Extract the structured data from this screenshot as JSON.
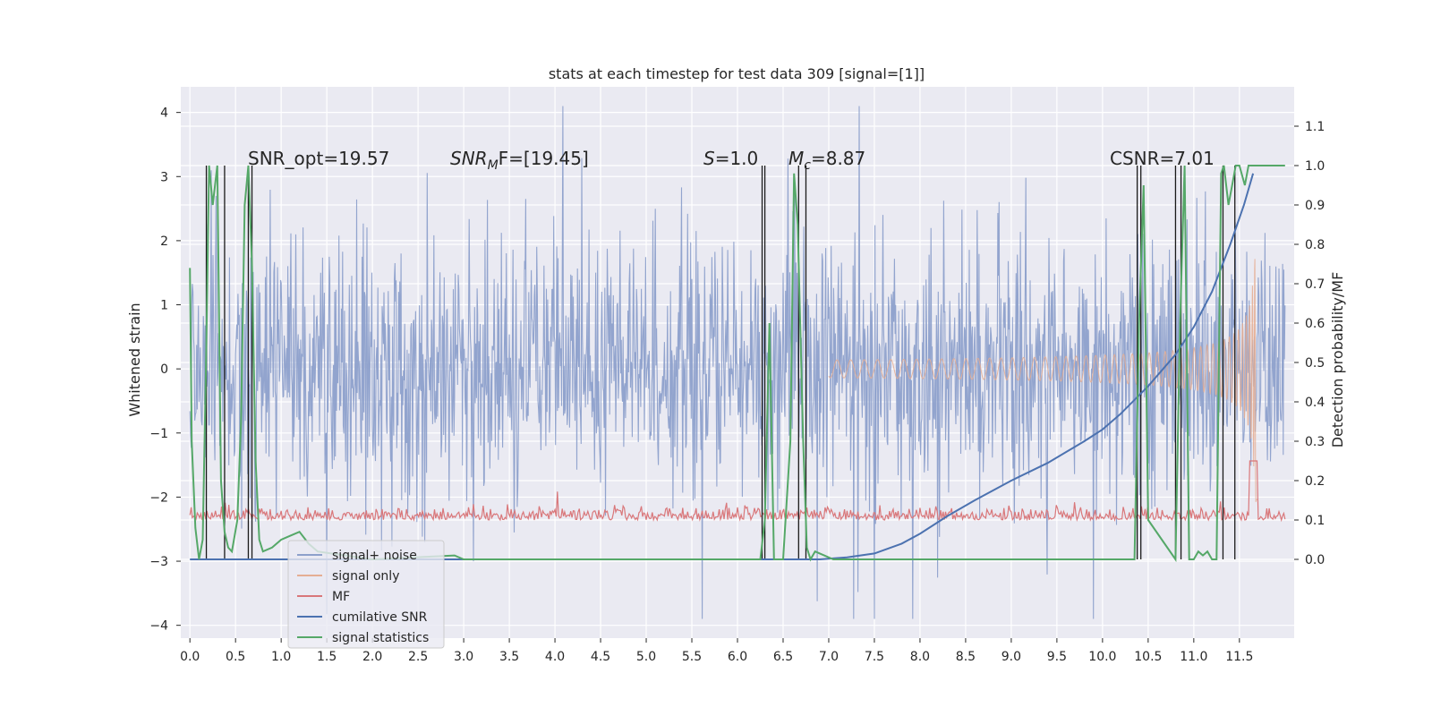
{
  "chart_data": {
    "type": "line",
    "title": "stats at each timestep for test data 309 [signal=[1]]",
    "xlabel": "",
    "ylabel": "Whitened strain",
    "ylabel_right": "Detection probability/MF",
    "xlim": [
      -0.1,
      12.1
    ],
    "ylim": [
      -4.2,
      4.4
    ],
    "ylim_right": [
      -0.2,
      1.2
    ],
    "x_ticks": [
      "0.0",
      "0.5",
      "1.0",
      "1.5",
      "2.0",
      "2.5",
      "3.0",
      "3.5",
      "4.0",
      "4.5",
      "5.0",
      "5.5",
      "6.0",
      "6.5",
      "7.0",
      "7.5",
      "8.0",
      "8.5",
      "9.0",
      "9.5",
      "10.0",
      "10.5",
      "11.0",
      "11.5"
    ],
    "y_ticks": [
      "4",
      "3",
      "2",
      "1",
      "0",
      "−1",
      "−2",
      "−3",
      "−4"
    ],
    "y_ticks_right": [
      "1.1",
      "1.0",
      "0.9",
      "0.8",
      "0.7",
      "0.6",
      "0.5",
      "0.4",
      "0.3",
      "0.2",
      "0.1",
      "0.0"
    ],
    "grid": true,
    "legend_position": "lower-left",
    "annotations": {
      "snr_opt": "SNR_opt=19.57",
      "snr_mf_symbol": "SNR",
      "snr_mf_sub": "M",
      "snr_mf_rest": "F=[19.45]",
      "s_symbol": "S",
      "s_rest": "=1.0",
      "mc_symbol": "M",
      "mc_sub": "c",
      "mc_rest": "=8.87",
      "csnr": "CSNR=7.01"
    },
    "series": [
      {
        "name": "signal+ noise",
        "color": "#8da0cb",
        "envelope": "noise band approximately ±1.7, peaks up to about ±3.8, x from 0.0 to 12.0"
      },
      {
        "name": "signal only",
        "color": "#e5ae93",
        "envelope": "chirp amplitude grows from about ±0.05 at x=7 to about ±2.0 at x=11.65, ends at x=11.7"
      },
      {
        "name": "MF",
        "color": "#d9777a",
        "values_note": "small noise around 0.1 on the right axis"
      },
      {
        "name": "cumilative SNR",
        "color": "#4c72b0",
        "x": [
          6.9,
          7.2,
          7.5,
          7.8,
          8.0,
          8.3,
          8.6,
          9.0,
          9.4,
          9.8,
          10.0,
          10.2,
          10.5,
          10.8,
          11.0,
          11.2,
          11.4,
          11.55,
          11.65
        ],
        "y_right": [
          0.0,
          0.005,
          0.015,
          0.04,
          0.065,
          0.11,
          0.15,
          0.2,
          0.245,
          0.3,
          0.33,
          0.37,
          0.44,
          0.52,
          0.59,
          0.68,
          0.8,
          0.9,
          0.98
        ]
      },
      {
        "name": "signal statistics",
        "color": "#55a868",
        "x": [
          0.0,
          0.02,
          0.06,
          0.1,
          0.14,
          0.18,
          0.21,
          0.25,
          0.3,
          0.34,
          0.38,
          0.42,
          0.46,
          0.52,
          0.56,
          0.6,
          0.64,
          0.68,
          0.72,
          0.76,
          0.8,
          0.9,
          1.0,
          1.1,
          1.2,
          1.3,
          1.4,
          2.0,
          2.9,
          3.0,
          4.0,
          5.0,
          6.0,
          6.25,
          6.3,
          6.35,
          6.4,
          6.5,
          6.58,
          6.62,
          6.66,
          6.72,
          6.76,
          6.8,
          6.85,
          6.95,
          7.05,
          7.2,
          8.0,
          9.0,
          10.0,
          10.35,
          10.4,
          10.45,
          10.5,
          10.8,
          10.85,
          10.9,
          10.95,
          11.0,
          11.05,
          11.1,
          11.15,
          11.2,
          11.25,
          11.3,
          11.33,
          11.38,
          11.42,
          11.46,
          11.5,
          11.56,
          11.6,
          11.65,
          11.75,
          11.85,
          12.0
        ],
        "y_right": [
          0.74,
          0.3,
          0.08,
          0.0,
          0.05,
          0.55,
          1.0,
          0.9,
          1.0,
          0.2,
          0.07,
          0.03,
          0.02,
          0.1,
          0.35,
          0.9,
          1.0,
          0.75,
          0.25,
          0.05,
          0.02,
          0.03,
          0.05,
          0.06,
          0.07,
          0.04,
          0.02,
          0.0,
          0.01,
          0.0,
          0.0,
          0.0,
          0.0,
          0.0,
          0.1,
          0.6,
          0.0,
          0.0,
          0.3,
          0.98,
          0.85,
          0.3,
          0.03,
          0.0,
          0.02,
          0.01,
          0.0,
          0.0,
          0.0,
          0.0,
          0.0,
          0.0,
          0.6,
          0.95,
          0.1,
          0.0,
          0.6,
          1.0,
          0.0,
          0.0,
          0.02,
          0.01,
          0.02,
          0.0,
          0.0,
          0.98,
          1.0,
          0.9,
          0.95,
          1.0,
          1.0,
          0.95,
          1.0,
          1.0,
          1.0,
          1.0,
          1.0
        ]
      }
    ],
    "vertical_markers_x": [
      0.18,
      0.38,
      0.64,
      0.68,
      6.27,
      6.3,
      6.67,
      6.75,
      10.38,
      10.42,
      10.8,
      10.86,
      11.32,
      11.45
    ]
  },
  "legend": {
    "items": [
      {
        "label": "signal+ noise",
        "color": "#8da0cb"
      },
      {
        "label": "signal only",
        "color": "#e5ae93"
      },
      {
        "label": "MF",
        "color": "#d9777a"
      },
      {
        "label": "cumilative SNR",
        "color": "#4c72b0"
      },
      {
        "label": "signal statistics",
        "color": "#55a868"
      }
    ]
  },
  "colors": {
    "plot_background": "#eaeaf2",
    "grid": "#ffffff",
    "text": "#262626",
    "marker": "#1a1a1a"
  }
}
